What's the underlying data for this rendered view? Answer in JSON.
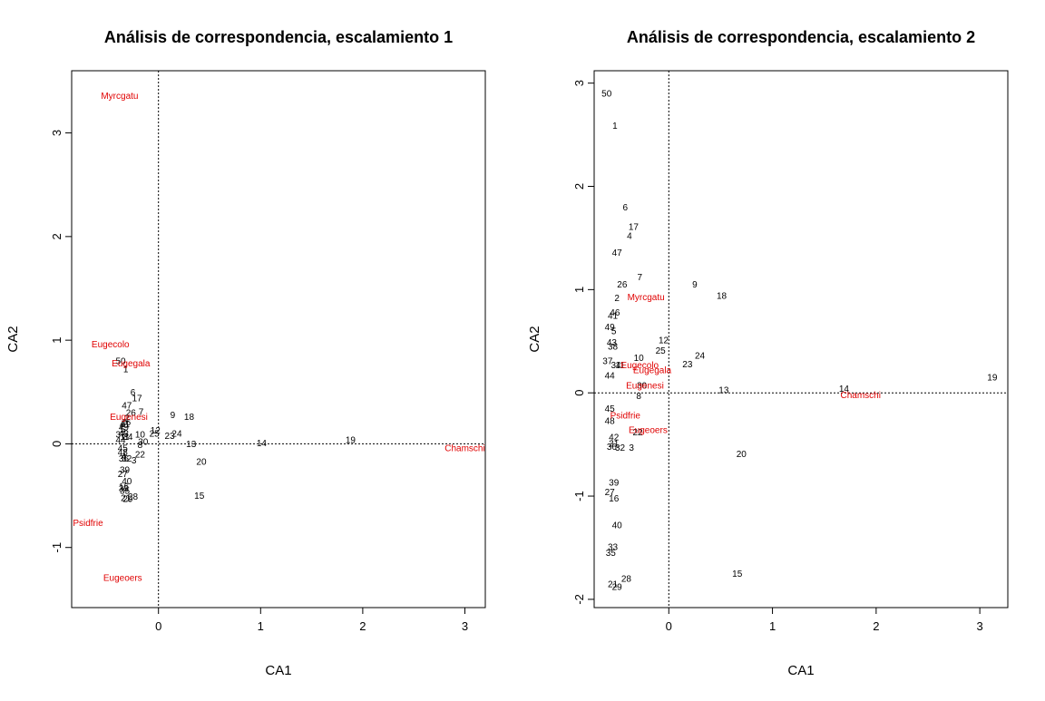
{
  "chart_data": [
    {
      "type": "scatter",
      "title": "Análisis de correspondencia, escalamiento 1",
      "xlabel": "CA1",
      "ylabel": "CA2",
      "xlim": [
        -0.85,
        3.2
      ],
      "ylim": [
        -1.58,
        3.6
      ],
      "xticks": [
        0,
        1,
        2,
        3
      ],
      "yticks": [
        -1,
        0,
        1,
        2,
        3
      ],
      "reference_lines": {
        "x": 0,
        "y": 0,
        "style": "dotted"
      },
      "colors": {
        "sites": "#000000",
        "species": "#e00000"
      },
      "sites": [
        {
          "label": "50",
          "x": -0.37,
          "y": 0.8
        },
        {
          "label": "1",
          "x": -0.32,
          "y": 0.72
        },
        {
          "label": "6",
          "x": -0.25,
          "y": 0.5
        },
        {
          "label": "17",
          "x": -0.21,
          "y": 0.44
        },
        {
          "label": "47",
          "x": -0.31,
          "y": 0.37
        },
        {
          "label": "7",
          "x": -0.17,
          "y": 0.31
        },
        {
          "label": "26",
          "x": -0.27,
          "y": 0.3
        },
        {
          "label": "2",
          "x": -0.31,
          "y": 0.25
        },
        {
          "label": "9",
          "x": 0.14,
          "y": 0.28
        },
        {
          "label": "18",
          "x": 0.3,
          "y": 0.26
        },
        {
          "label": "46",
          "x": -0.32,
          "y": 0.21
        },
        {
          "label": "41",
          "x": -0.33,
          "y": 0.19
        },
        {
          "label": "49",
          "x": -0.34,
          "y": 0.16
        },
        {
          "label": "5",
          "x": -0.35,
          "y": 0.14
        },
        {
          "label": "12",
          "x": -0.03,
          "y": 0.13
        },
        {
          "label": "25",
          "x": -0.04,
          "y": 0.1
        },
        {
          "label": "24",
          "x": 0.18,
          "y": 0.1
        },
        {
          "label": "10",
          "x": -0.18,
          "y": 0.09
        },
        {
          "label": "23",
          "x": 0.11,
          "y": 0.08
        },
        {
          "label": "37",
          "x": -0.37,
          "y": 0.09
        },
        {
          "label": "43",
          "x": -0.34,
          "y": 0.1
        },
        {
          "label": "34",
          "x": -0.3,
          "y": 0.07
        },
        {
          "label": "11",
          "x": -0.33,
          "y": 0.07
        },
        {
          "label": "44",
          "x": -0.37,
          "y": 0.04
        },
        {
          "label": "30",
          "x": -0.15,
          "y": 0.02
        },
        {
          "label": "13",
          "x": 0.32,
          "y": 0.0
        },
        {
          "label": "14",
          "x": 1.01,
          "y": 0.01
        },
        {
          "label": "19",
          "x": 1.88,
          "y": 0.04
        },
        {
          "label": "8",
          "x": -0.18,
          "y": -0.01
        },
        {
          "label": "45",
          "x": -0.35,
          "y": -0.04
        },
        {
          "label": "48",
          "x": -0.35,
          "y": -0.08
        },
        {
          "label": "22",
          "x": -0.18,
          "y": -0.1
        },
        {
          "label": "4",
          "x": -0.34,
          "y": -0.12
        },
        {
          "label": "36",
          "x": -0.34,
          "y": -0.14
        },
        {
          "label": "32",
          "x": -0.31,
          "y": -0.14
        },
        {
          "label": "3",
          "x": -0.24,
          "y": -0.16
        },
        {
          "label": "20",
          "x": 0.42,
          "y": -0.17
        },
        {
          "label": "39",
          "x": -0.33,
          "y": -0.25
        },
        {
          "label": "27",
          "x": -0.35,
          "y": -0.29
        },
        {
          "label": "40",
          "x": -0.31,
          "y": -0.36
        },
        {
          "label": "16",
          "x": -0.34,
          "y": -0.41
        },
        {
          "label": "33",
          "x": -0.34,
          "y": -0.43
        },
        {
          "label": "35",
          "x": -0.33,
          "y": -0.45
        },
        {
          "label": "15",
          "x": 0.4,
          "y": -0.5
        },
        {
          "label": "28",
          "x": -0.25,
          "y": -0.51
        },
        {
          "label": "21",
          "x": -0.32,
          "y": -0.52
        },
        {
          "label": "29",
          "x": -0.3,
          "y": -0.53
        }
      ],
      "species": [
        {
          "label": "Myrcgatu",
          "x": -0.38,
          "y": 3.36
        },
        {
          "label": "Eugecolo",
          "x": -0.47,
          "y": 0.96
        },
        {
          "label": "Eugegala",
          "x": -0.27,
          "y": 0.78
        },
        {
          "label": "Eugenesi",
          "x": -0.29,
          "y": 0.26
        },
        {
          "label": "Chamschi",
          "x": 3.0,
          "y": -0.04
        },
        {
          "label": "Psidfrie",
          "x": -0.69,
          "y": -0.76
        },
        {
          "label": "Eugeoers",
          "x": -0.35,
          "y": -1.29
        }
      ]
    },
    {
      "type": "scatter",
      "title": "Análisis de correspondencia, escalamiento 2",
      "xlabel": "CA1",
      "ylabel": "CA2",
      "xlim": [
        -0.72,
        3.27
      ],
      "ylim": [
        -2.08,
        3.12
      ],
      "xticks": [
        0,
        1,
        2,
        3
      ],
      "yticks": [
        -2,
        -1,
        0,
        1,
        2,
        3
      ],
      "reference_lines": {
        "x": 0,
        "y": 0,
        "style": "dotted"
      },
      "colors": {
        "sites": "#000000",
        "species": "#e00000"
      },
      "sites": [
        {
          "label": "50",
          "x": -0.6,
          "y": 2.9
        },
        {
          "label": "1",
          "x": -0.52,
          "y": 2.59
        },
        {
          "label": "6",
          "x": -0.42,
          "y": 1.8
        },
        {
          "label": "17",
          "x": -0.34,
          "y": 1.61
        },
        {
          "label": "4",
          "x": -0.38,
          "y": 1.52
        },
        {
          "label": "47",
          "x": -0.5,
          "y": 1.36
        },
        {
          "label": "7",
          "x": -0.28,
          "y": 1.12
        },
        {
          "label": "26",
          "x": -0.45,
          "y": 1.05
        },
        {
          "label": "9",
          "x": 0.25,
          "y": 1.05
        },
        {
          "label": "18",
          "x": 0.51,
          "y": 0.94
        },
        {
          "label": "2",
          "x": -0.5,
          "y": 0.92
        },
        {
          "label": "46",
          "x": -0.52,
          "y": 0.78
        },
        {
          "label": "41",
          "x": -0.54,
          "y": 0.75
        },
        {
          "label": "49",
          "x": -0.57,
          "y": 0.64
        },
        {
          "label": "5",
          "x": -0.53,
          "y": 0.6
        },
        {
          "label": "12",
          "x": -0.05,
          "y": 0.51
        },
        {
          "label": "43",
          "x": -0.55,
          "y": 0.49
        },
        {
          "label": "38",
          "x": -0.54,
          "y": 0.45
        },
        {
          "label": "25",
          "x": -0.08,
          "y": 0.41
        },
        {
          "label": "24",
          "x": 0.3,
          "y": 0.36
        },
        {
          "label": "10",
          "x": -0.29,
          "y": 0.34
        },
        {
          "label": "37",
          "x": -0.59,
          "y": 0.31
        },
        {
          "label": "34",
          "x": -0.51,
          "y": 0.27
        },
        {
          "label": "11",
          "x": -0.47,
          "y": 0.27
        },
        {
          "label": "23",
          "x": 0.18,
          "y": 0.28
        },
        {
          "label": "44",
          "x": -0.57,
          "y": 0.17
        },
        {
          "label": "30",
          "x": -0.26,
          "y": 0.07
        },
        {
          "label": "13",
          "x": 0.53,
          "y": 0.03
        },
        {
          "label": "14",
          "x": 1.69,
          "y": 0.04
        },
        {
          "label": "19",
          "x": 3.12,
          "y": 0.15
        },
        {
          "label": "8",
          "x": -0.29,
          "y": -0.03
        },
        {
          "label": "45",
          "x": -0.57,
          "y": -0.15
        },
        {
          "label": "48",
          "x": -0.57,
          "y": -0.27
        },
        {
          "label": "22",
          "x": -0.3,
          "y": -0.38
        },
        {
          "label": "42",
          "x": -0.53,
          "y": -0.43
        },
        {
          "label": "31",
          "x": -0.53,
          "y": -0.49
        },
        {
          "label": "36",
          "x": -0.55,
          "y": -0.52
        },
        {
          "label": "32",
          "x": -0.47,
          "y": -0.53
        },
        {
          "label": "3",
          "x": -0.36,
          "y": -0.53
        },
        {
          "label": "20",
          "x": 0.7,
          "y": -0.59
        },
        {
          "label": "39",
          "x": -0.53,
          "y": -0.87
        },
        {
          "label": "27",
          "x": -0.57,
          "y": -0.96
        },
        {
          "label": "16",
          "x": -0.53,
          "y": -1.02
        },
        {
          "label": "40",
          "x": -0.5,
          "y": -1.28
        },
        {
          "label": "33",
          "x": -0.54,
          "y": -1.49
        },
        {
          "label": "35",
          "x": -0.56,
          "y": -1.55
        },
        {
          "label": "15",
          "x": 0.66,
          "y": -1.75
        },
        {
          "label": "28",
          "x": -0.41,
          "y": -1.8
        },
        {
          "label": "21",
          "x": -0.54,
          "y": -1.85
        },
        {
          "label": "29",
          "x": -0.5,
          "y": -1.88
        }
      ],
      "species": [
        {
          "label": "Myrcgatu",
          "x": -0.22,
          "y": 0.93
        },
        {
          "label": "Eugecolo",
          "x": -0.28,
          "y": 0.27
        },
        {
          "label": "Eugegala",
          "x": -0.16,
          "y": 0.22
        },
        {
          "label": "Eugenesi",
          "x": -0.23,
          "y": 0.07
        },
        {
          "label": "Chamschi",
          "x": 1.85,
          "y": -0.02
        },
        {
          "label": "Psidfrie",
          "x": -0.42,
          "y": -0.22
        },
        {
          "label": "Eugeoers",
          "x": -0.2,
          "y": -0.36
        }
      ]
    }
  ]
}
